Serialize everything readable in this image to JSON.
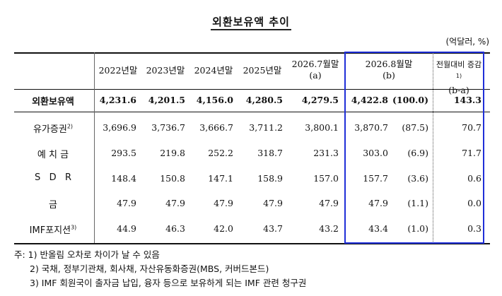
{
  "title": "외환보유액 추이",
  "unit": "(억달러, %)",
  "headers": {
    "c1": "2022년말",
    "c2": "2023년말",
    "c3": "2024년말",
    "c4": "2025년말",
    "c5_line1": "2026.7월말",
    "c5_line2": "(a)",
    "c6_line1": "2026.8월말",
    "c6_line2": "(b)",
    "c7_line1": "전월대비 증감",
    "c7_sup": "1)",
    "c7_line2": "(b-a)"
  },
  "rows": [
    {
      "label": "외환보유액",
      "sup": "",
      "v": [
        "4,231.6",
        "4,201.5",
        "4,156.0",
        "4,280.5",
        "4,279.5",
        "4,422.8",
        "(100.0)",
        "143.3"
      ]
    },
    {
      "label": "유가증권",
      "sup": "2)",
      "v": [
        "3,696.9",
        "3,736.7",
        "3,666.7",
        "3,711.2",
        "3,800.1",
        "3,870.7",
        "(87.5)",
        "70.7"
      ]
    },
    {
      "label": "예 치 금",
      "sup": "",
      "v": [
        "293.5",
        "219.8",
        "252.2",
        "318.7",
        "231.3",
        "303.0",
        "(6.9)",
        "71.7"
      ]
    },
    {
      "label": "S   D   R",
      "sup": "",
      "v": [
        "148.4",
        "150.8",
        "147.1",
        "158.9",
        "157.0",
        "157.7",
        "(3.6)",
        "0.6"
      ]
    },
    {
      "label": "금",
      "sup": "",
      "v": [
        "47.9",
        "47.9",
        "47.9",
        "47.9",
        "47.9",
        "47.9",
        "(1.1)",
        "0.0"
      ]
    },
    {
      "label": "IMF포지션",
      "sup": "3)",
      "v": [
        "44.9",
        "46.3",
        "42.0",
        "43.7",
        "43.2",
        "43.4",
        "(1.0)",
        "0.3"
      ]
    }
  ],
  "notes": [
    "주: 1) 반올림 오차로 차이가 날 수 있음",
    "2) 국채, 정부기관채, 회사채, 자산유동화증권(MBS, 커버드본드)",
    "3) IMF 회원국이 출자금 납입, 융자 등으로 보유하게 되는 IMF 관련 청구권"
  ]
}
